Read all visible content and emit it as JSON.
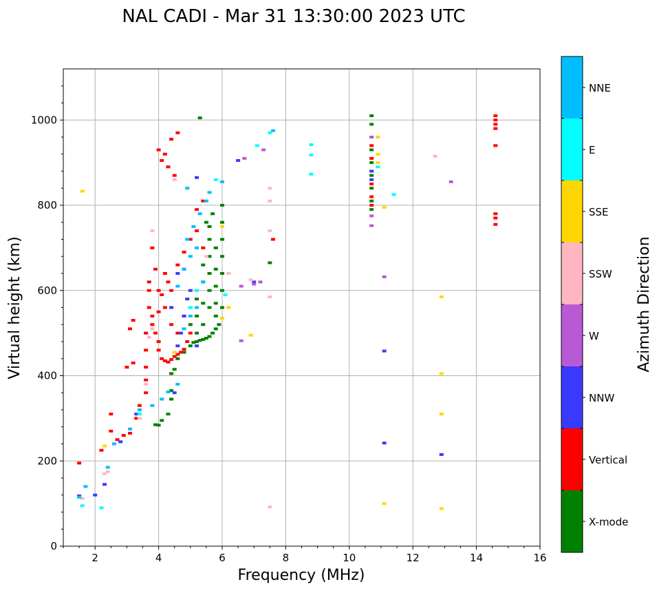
{
  "title": "NAL CADI - Mar 31 13:30:00 2023 UTC",
  "colors": {
    "X-mode": "#008000",
    "Vertical": "#ff0000",
    "NNW": "#3a3aff",
    "W": "#b85ad6",
    "SSW": "#ffb6c1",
    "SSE": "#ffd700",
    "E": "#00ffff",
    "NNE": "#00bfff"
  },
  "chart_data": {
    "type": "scatter",
    "title": "NAL CADI - Mar 31 13:30:00 2023 UTC",
    "xlabel": "Frequency (MHz)",
    "ylabel": "Virtual height (km)",
    "xlim": [
      1,
      16
    ],
    "ylim": [
      0,
      1120
    ],
    "xticks": [
      2,
      4,
      6,
      8,
      10,
      12,
      14,
      16
    ],
    "yticks": [
      0,
      200,
      400,
      600,
      800,
      1000
    ],
    "grid": true,
    "colorbar": {
      "label": "Azimuth Direction",
      "categories": [
        "X-mode",
        "Vertical",
        "NNW",
        "W",
        "SSW",
        "SSE",
        "E",
        "NNE"
      ]
    },
    "series": [
      {
        "name": "X-mode",
        "points": [
          [
            3.9,
            285
          ],
          [
            4.0,
            284
          ],
          [
            4.1,
            295
          ],
          [
            4.3,
            310
          ],
          [
            4.4,
            345
          ],
          [
            4.4,
            365
          ],
          [
            4.4,
            405
          ],
          [
            4.5,
            415
          ],
          [
            4.6,
            440
          ],
          [
            4.8,
            455
          ],
          [
            5.0,
            470
          ],
          [
            5.1,
            478
          ],
          [
            5.2,
            480
          ],
          [
            5.3,
            483
          ],
          [
            5.4,
            485
          ],
          [
            5.5,
            488
          ],
          [
            5.6,
            492
          ],
          [
            5.7,
            500
          ],
          [
            5.8,
            510
          ],
          [
            5.9,
            520
          ],
          [
            6.0,
            560
          ],
          [
            6.0,
            600
          ],
          [
            6.0,
            640
          ],
          [
            6.0,
            680
          ],
          [
            6.0,
            720
          ],
          [
            6.0,
            760
          ],
          [
            6.0,
            800
          ],
          [
            5.8,
            540
          ],
          [
            5.8,
            570
          ],
          [
            5.8,
            610
          ],
          [
            5.8,
            650
          ],
          [
            5.8,
            700
          ],
          [
            5.6,
            560
          ],
          [
            5.6,
            600
          ],
          [
            5.6,
            640
          ],
          [
            5.6,
            680
          ],
          [
            5.6,
            720
          ],
          [
            5.4,
            520
          ],
          [
            5.4,
            570
          ],
          [
            5.4,
            620
          ],
          [
            5.4,
            660
          ],
          [
            5.2,
            500
          ],
          [
            5.2,
            540
          ],
          [
            5.2,
            580
          ],
          [
            5.0,
            520
          ],
          [
            5.0,
            560
          ],
          [
            5.5,
            760
          ],
          [
            5.7,
            780
          ],
          [
            5.6,
            750
          ],
          [
            5.3,
            1005
          ],
          [
            7.5,
            665
          ],
          [
            10.7,
            1010
          ],
          [
            10.7,
            990
          ],
          [
            10.7,
            960
          ],
          [
            10.7,
            930
          ],
          [
            10.7,
            900
          ],
          [
            10.7,
            870
          ],
          [
            10.7,
            840
          ],
          [
            10.7,
            810
          ],
          [
            10.7,
            790
          ]
        ]
      },
      {
        "name": "Vertical",
        "points": [
          [
            1.5,
            195
          ],
          [
            2.2,
            225
          ],
          [
            2.5,
            270
          ],
          [
            2.5,
            310
          ],
          [
            2.7,
            250
          ],
          [
            2.9,
            260
          ],
          [
            3.1,
            265
          ],
          [
            3.3,
            300
          ],
          [
            3.4,
            330
          ],
          [
            3.6,
            360
          ],
          [
            3.6,
            390
          ],
          [
            3.6,
            420
          ],
          [
            3.6,
            460
          ],
          [
            3.6,
            500
          ],
          [
            3.7,
            560
          ],
          [
            3.7,
            600
          ],
          [
            3.7,
            620
          ],
          [
            3.8,
            540
          ],
          [
            3.8,
            520
          ],
          [
            3.9,
            500
          ],
          [
            4.0,
            480
          ],
          [
            4.0,
            460
          ],
          [
            4.1,
            440
          ],
          [
            4.2,
            435
          ],
          [
            4.3,
            432
          ],
          [
            4.4,
            438
          ],
          [
            4.5,
            445
          ],
          [
            4.6,
            450
          ],
          [
            4.7,
            455
          ],
          [
            4.8,
            462
          ],
          [
            4.9,
            480
          ],
          [
            5.0,
            500
          ],
          [
            4.0,
            550
          ],
          [
            4.2,
            560
          ],
          [
            4.4,
            520
          ],
          [
            4.6,
            500
          ],
          [
            4.8,
            540
          ],
          [
            4.0,
            600
          ],
          [
            4.2,
            640
          ],
          [
            4.4,
            600
          ],
          [
            4.6,
            660
          ],
          [
            4.8,
            690
          ],
          [
            5.0,
            720
          ],
          [
            5.2,
            740
          ],
          [
            5.4,
            700
          ],
          [
            4.3,
            620
          ],
          [
            4.1,
            590
          ],
          [
            3.9,
            650
          ],
          [
            3.8,
            700
          ],
          [
            4.0,
            930
          ],
          [
            4.2,
            920
          ],
          [
            4.4,
            955
          ],
          [
            4.6,
            970
          ],
          [
            4.3,
            890
          ],
          [
            4.5,
            870
          ],
          [
            4.1,
            905
          ],
          [
            5.2,
            790
          ],
          [
            5.4,
            810
          ],
          [
            3.0,
            420
          ],
          [
            3.2,
            430
          ],
          [
            3.1,
            510
          ],
          [
            3.2,
            530
          ],
          [
            7.6,
            720
          ],
          [
            10.7,
            940
          ],
          [
            10.7,
            910
          ],
          [
            10.7,
            880
          ],
          [
            10.7,
            850
          ],
          [
            10.7,
            820
          ],
          [
            10.7,
            800
          ],
          [
            14.6,
            1010
          ],
          [
            14.6,
            1000
          ],
          [
            14.6,
            990
          ],
          [
            14.6,
            980
          ],
          [
            14.6,
            940
          ],
          [
            14.6,
            780
          ],
          [
            14.6,
            770
          ],
          [
            14.6,
            755
          ]
        ]
      },
      {
        "name": "NNW",
        "points": [
          [
            1.5,
            118
          ],
          [
            2.0,
            120
          ],
          [
            2.3,
            145
          ],
          [
            2.8,
            245
          ],
          [
            3.3,
            310
          ],
          [
            4.5,
            360
          ],
          [
            4.6,
            470
          ],
          [
            4.7,
            500
          ],
          [
            4.8,
            540
          ],
          [
            4.9,
            580
          ],
          [
            5.0,
            600
          ],
          [
            4.6,
            640
          ],
          [
            4.8,
            650
          ],
          [
            5.2,
            470
          ],
          [
            4.4,
            560
          ],
          [
            5.2,
            865
          ],
          [
            6.5,
            905
          ],
          [
            7.0,
            620
          ],
          [
            10.7,
            880
          ],
          [
            10.7,
            860
          ],
          [
            11.1,
            458
          ],
          [
            11.1,
            242
          ],
          [
            12.9,
            215
          ]
        ]
      },
      {
        "name": "W",
        "points": [
          [
            6.6,
            610
          ],
          [
            6.6,
            482
          ],
          [
            7.0,
            615
          ],
          [
            7.2,
            620
          ],
          [
            6.7,
            910
          ],
          [
            7.3,
            930
          ],
          [
            13.2,
            855
          ],
          [
            11.1,
            632
          ],
          [
            10.7,
            752
          ],
          [
            10.7,
            775
          ],
          [
            10.7,
            960
          ]
        ]
      },
      {
        "name": "SSW",
        "points": [
          [
            1.6,
            112
          ],
          [
            2.3,
            170
          ],
          [
            2.4,
            175
          ],
          [
            3.4,
            300
          ],
          [
            3.6,
            380
          ],
          [
            3.7,
            490
          ],
          [
            3.8,
            510
          ],
          [
            3.8,
            740
          ],
          [
            4.5,
            860
          ],
          [
            5.5,
            680
          ],
          [
            6.2,
            640
          ],
          [
            7.5,
            840
          ],
          [
            7.5,
            810
          ],
          [
            7.5,
            740
          ],
          [
            7.5,
            585
          ],
          [
            7.5,
            92
          ],
          [
            12.7,
            915
          ],
          [
            6.9,
            625
          ]
        ]
      },
      {
        "name": "SSE",
        "points": [
          [
            1.6,
            833
          ],
          [
            2.3,
            235
          ],
          [
            4.5,
            455
          ],
          [
            6.0,
            535
          ],
          [
            6.0,
            750
          ],
          [
            6.2,
            560
          ],
          [
            6.9,
            495
          ],
          [
            10.9,
            960
          ],
          [
            10.9,
            920
          ],
          [
            10.9,
            900
          ],
          [
            11.1,
            795
          ],
          [
            11.1,
            100
          ],
          [
            12.9,
            585
          ],
          [
            12.9,
            405
          ],
          [
            12.9,
            310
          ],
          [
            12.9,
            88
          ]
        ]
      },
      {
        "name": "E",
        "points": [
          [
            1.6,
            95
          ],
          [
            2.2,
            90
          ],
          [
            3.4,
            310
          ],
          [
            5.0,
            560
          ],
          [
            5.2,
            600
          ],
          [
            6.1,
            590
          ],
          [
            8.8,
            942
          ],
          [
            8.8,
            918
          ],
          [
            8.8,
            873
          ],
          [
            11.4,
            825
          ],
          [
            10.9,
            890
          ],
          [
            7.5,
            970
          ],
          [
            7.1,
            940
          ],
          [
            5.8,
            860
          ]
        ]
      },
      {
        "name": "NNE",
        "points": [
          [
            1.5,
            115
          ],
          [
            1.7,
            140
          ],
          [
            2.4,
            185
          ],
          [
            2.6,
            240
          ],
          [
            3.1,
            275
          ],
          [
            3.4,
            320
          ],
          [
            3.8,
            330
          ],
          [
            4.1,
            345
          ],
          [
            4.3,
            362
          ],
          [
            4.6,
            380
          ],
          [
            4.8,
            510
          ],
          [
            5.0,
            540
          ],
          [
            4.6,
            610
          ],
          [
            4.8,
            650
          ],
          [
            5.0,
            680
          ],
          [
            5.2,
            700
          ],
          [
            4.9,
            720
          ],
          [
            5.1,
            750
          ],
          [
            5.3,
            780
          ],
          [
            5.5,
            810
          ],
          [
            5.6,
            830
          ],
          [
            6.0,
            855
          ],
          [
            4.9,
            840
          ],
          [
            5.2,
            560
          ],
          [
            5.4,
            620
          ],
          [
            7.6,
            975
          ]
        ]
      }
    ]
  }
}
